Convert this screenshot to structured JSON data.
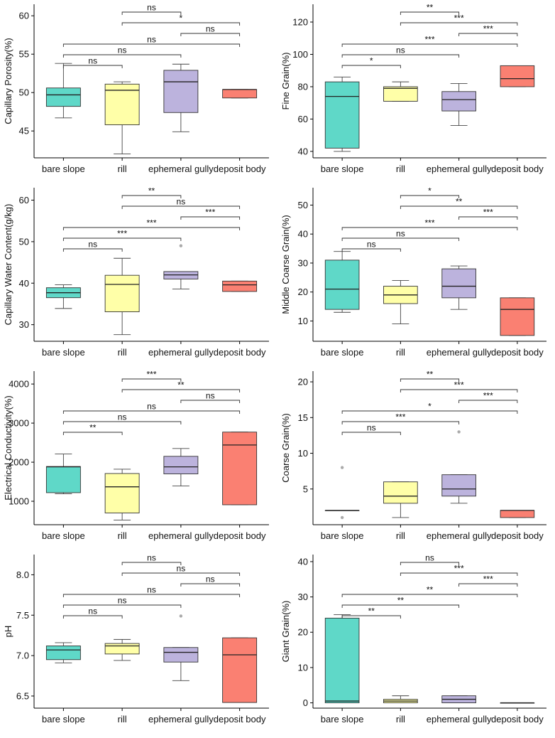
{
  "figure": {
    "columns": 2,
    "rows": 4
  },
  "chart_data": [
    {
      "type": "boxplot",
      "ylabel": "Capillary Porosity(%)",
      "ylim": [
        41.5,
        61.5
      ],
      "yticks": [
        45,
        50,
        55,
        60
      ],
      "categories": [
        "bare slope",
        "rill",
        "ephemeral gully",
        "deposit body"
      ],
      "colors": [
        "#5fd8c8",
        "#ffffa8",
        "#bcb3dd",
        "#fa8072"
      ],
      "boxes": [
        {
          "q1": 48.2,
          "median": 49.7,
          "q3": 50.6,
          "whisker_low": 46.7,
          "whisker_high": 53.8,
          "outliers": []
        },
        {
          "q1": 45.8,
          "median": 50.3,
          "q3": 51.1,
          "whisker_low": 42.0,
          "whisker_high": 51.4,
          "outliers": []
        },
        {
          "q1": 47.4,
          "median": 51.4,
          "q3": 52.9,
          "whisker_low": 44.9,
          "whisker_high": 53.7,
          "outliers": []
        },
        {
          "q1": 49.3,
          "median": 50.4,
          "q3": 50.4,
          "whisker_low": 49.3,
          "whisker_high": 50.4,
          "outliers": []
        }
      ],
      "comparisons": [
        {
          "from": 1,
          "to": 2,
          "label": "ns"
        },
        {
          "from": 1,
          "to": 3,
          "label": "*"
        },
        {
          "from": 2,
          "to": 3,
          "label": "ns"
        },
        {
          "from": 0,
          "to": 3,
          "label": "ns"
        },
        {
          "from": 0,
          "to": 2,
          "label": "ns"
        },
        {
          "from": 0,
          "to": 1,
          "label": "ns"
        }
      ]
    },
    {
      "type": "boxplot",
      "ylabel": "Fine Grain(%)",
      "ylim": [
        36,
        131
      ],
      "yticks": [
        40,
        60,
        80,
        100,
        120
      ],
      "categories": [
        "bare slope",
        "rill",
        "ephemeral gully",
        "deposit body"
      ],
      "colors": [
        "#5fd8c8",
        "#ffffa8",
        "#bcb3dd",
        "#fa8072"
      ],
      "boxes": [
        {
          "q1": 42,
          "median": 74,
          "q3": 83,
          "whisker_low": 40,
          "whisker_high": 86,
          "outliers": []
        },
        {
          "q1": 71,
          "median": 79,
          "q3": 80,
          "whisker_low": 71,
          "whisker_high": 83,
          "outliers": []
        },
        {
          "q1": 65,
          "median": 72,
          "q3": 77,
          "whisker_low": 56,
          "whisker_high": 82,
          "outliers": []
        },
        {
          "q1": 80,
          "median": 85,
          "q3": 93,
          "whisker_low": 80,
          "whisker_high": 93,
          "outliers": []
        }
      ],
      "comparisons": [
        {
          "from": 1,
          "to": 2,
          "label": "**"
        },
        {
          "from": 1,
          "to": 3,
          "label": "***"
        },
        {
          "from": 2,
          "to": 3,
          "label": "***"
        },
        {
          "from": 0,
          "to": 3,
          "label": "***"
        },
        {
          "from": 0,
          "to": 2,
          "label": "ns"
        },
        {
          "from": 0,
          "to": 1,
          "label": "*"
        }
      ]
    },
    {
      "type": "boxplot",
      "ylabel": "Capillary Water Content(g/kg)",
      "ylim": [
        26,
        63
      ],
      "yticks": [
        30,
        40,
        50,
        60
      ],
      "categories": [
        "bare slope",
        "rill",
        "ephemeral gully",
        "deposit body"
      ],
      "colors": [
        "#5fd8c8",
        "#ffffa8",
        "#bcb3dd",
        "#fa8072"
      ],
      "boxes": [
        {
          "q1": 36.5,
          "median": 37.7,
          "q3": 38.9,
          "whisker_low": 33.9,
          "whisker_high": 39.6,
          "outliers": []
        },
        {
          "q1": 33.1,
          "median": 39.7,
          "q3": 41.9,
          "whisker_low": 27.6,
          "whisker_high": 46.0,
          "outliers": []
        },
        {
          "q1": 41.0,
          "median": 42.0,
          "q3": 42.8,
          "whisker_low": 38.6,
          "whisker_high": 42.8,
          "outliers": [
            49.0
          ]
        },
        {
          "q1": 38.0,
          "median": 39.6,
          "q3": 40.5,
          "whisker_low": 38.0,
          "whisker_high": 40.5,
          "outliers": []
        }
      ],
      "comparisons": [
        {
          "from": 1,
          "to": 2,
          "label": "**"
        },
        {
          "from": 1,
          "to": 3,
          "label": "ns"
        },
        {
          "from": 2,
          "to": 3,
          "label": "***"
        },
        {
          "from": 0,
          "to": 3,
          "label": "***"
        },
        {
          "from": 0,
          "to": 2,
          "label": "***"
        },
        {
          "from": 0,
          "to": 1,
          "label": "ns"
        }
      ]
    },
    {
      "type": "boxplot",
      "ylabel": "Middle Coarse Grain(%)",
      "ylim": [
        3,
        56
      ],
      "yticks": [
        10,
        20,
        30,
        40,
        50
      ],
      "categories": [
        "bare slope",
        "rill",
        "ephemeral gully",
        "deposit body"
      ],
      "colors": [
        "#5fd8c8",
        "#ffffa8",
        "#bcb3dd",
        "#fa8072"
      ],
      "boxes": [
        {
          "q1": 14,
          "median": 21,
          "q3": 31,
          "whisker_low": 13,
          "whisker_high": 34,
          "outliers": []
        },
        {
          "q1": 16,
          "median": 19,
          "q3": 22,
          "whisker_low": 9,
          "whisker_high": 24,
          "outliers": []
        },
        {
          "q1": 18,
          "median": 22,
          "q3": 28,
          "whisker_low": 14,
          "whisker_high": 29,
          "outliers": []
        },
        {
          "q1": 5,
          "median": 14,
          "q3": 18,
          "whisker_low": 5,
          "whisker_high": 18,
          "outliers": []
        }
      ],
      "comparisons": [
        {
          "from": 1,
          "to": 2,
          "label": "*"
        },
        {
          "from": 1,
          "to": 3,
          "label": "**"
        },
        {
          "from": 2,
          "to": 3,
          "label": "***"
        },
        {
          "from": 0,
          "to": 3,
          "label": "***"
        },
        {
          "from": 0,
          "to": 2,
          "label": "ns"
        },
        {
          "from": 0,
          "to": 1,
          "label": "ns"
        }
      ]
    },
    {
      "type": "boxplot",
      "ylabel": "Electrical Conductivity(%)",
      "ylim": [
        400,
        4330
      ],
      "yticks": [
        1000,
        2000,
        3000,
        4000
      ],
      "categories": [
        "bare slope",
        "rill",
        "ephemeral gully",
        "deposit body"
      ],
      "colors": [
        "#5fd8c8",
        "#ffffa8",
        "#bcb3dd",
        "#fa8072"
      ],
      "boxes": [
        {
          "q1": 1220,
          "median": 1880,
          "q3": 1890,
          "whisker_low": 1190,
          "whisker_high": 2210,
          "outliers": []
        },
        {
          "q1": 700,
          "median": 1370,
          "q3": 1710,
          "whisker_low": 520,
          "whisker_high": 1820,
          "outliers": []
        },
        {
          "q1": 1700,
          "median": 1880,
          "q3": 2150,
          "whisker_low": 1390,
          "whisker_high": 2350,
          "outliers": []
        },
        {
          "q1": 910,
          "median": 2440,
          "q3": 2770,
          "whisker_low": 910,
          "whisker_high": 2770,
          "outliers": []
        }
      ],
      "comparisons": [
        {
          "from": 1,
          "to": 2,
          "label": "***"
        },
        {
          "from": 1,
          "to": 3,
          "label": "**"
        },
        {
          "from": 2,
          "to": 3,
          "label": "ns"
        },
        {
          "from": 0,
          "to": 3,
          "label": "ns"
        },
        {
          "from": 0,
          "to": 2,
          "label": "ns"
        },
        {
          "from": 0,
          "to": 1,
          "label": "**"
        }
      ]
    },
    {
      "type": "boxplot",
      "ylabel": "Coarse Grain(%)",
      "ylim": [
        0,
        21.5
      ],
      "yticks": [
        5,
        10,
        15,
        20
      ],
      "categories": [
        "bare slope",
        "rill",
        "ephemeral gully",
        "deposit body"
      ],
      "colors": [
        "#5fd8c8",
        "#ffffa8",
        "#bcb3dd",
        "#fa8072"
      ],
      "boxes": [
        {
          "q1": 2,
          "median": 2,
          "q3": 2,
          "whisker_low": 2,
          "whisker_high": 2,
          "outliers": [
            8,
            1
          ]
        },
        {
          "q1": 3,
          "median": 4,
          "q3": 6,
          "whisker_low": 1,
          "whisker_high": 6,
          "outliers": []
        },
        {
          "q1": 4,
          "median": 5,
          "q3": 7,
          "whisker_low": 3,
          "whisker_high": 7,
          "outliers": [
            13
          ]
        },
        {
          "q1": 1,
          "median": 2,
          "q3": 2,
          "whisker_low": 1,
          "whisker_high": 2,
          "outliers": []
        }
      ],
      "comparisons": [
        {
          "from": 1,
          "to": 2,
          "label": "**"
        },
        {
          "from": 1,
          "to": 3,
          "label": "***"
        },
        {
          "from": 2,
          "to": 3,
          "label": "***"
        },
        {
          "from": 0,
          "to": 3,
          "label": "*"
        },
        {
          "from": 0,
          "to": 2,
          "label": "***"
        },
        {
          "from": 0,
          "to": 1,
          "label": "ns"
        }
      ]
    },
    {
      "type": "boxplot",
      "ylabel": "pH",
      "ylim": [
        6.35,
        8.25
      ],
      "yticks": [
        6.5,
        7.0,
        7.5,
        8.0
      ],
      "ytick_labels": [
        "6.5",
        "7.0",
        "7.5",
        "8.0"
      ],
      "categories": [
        "bare slope",
        "rill",
        "ephemeral gully",
        "deposit body"
      ],
      "colors": [
        "#5fd8c8",
        "#ffffa8",
        "#bcb3dd",
        "#fa8072"
      ],
      "boxes": [
        {
          "q1": 6.95,
          "median": 7.07,
          "q3": 7.12,
          "whisker_low": 6.91,
          "whisker_high": 7.16,
          "outliers": []
        },
        {
          "q1": 7.02,
          "median": 7.12,
          "q3": 7.15,
          "whisker_low": 6.94,
          "whisker_high": 7.2,
          "outliers": []
        },
        {
          "q1": 6.92,
          "median": 7.04,
          "q3": 7.1,
          "whisker_low": 6.69,
          "whisker_high": 7.1,
          "outliers": [
            7.49
          ]
        },
        {
          "q1": 6.42,
          "median": 7.01,
          "q3": 7.22,
          "whisker_low": 6.42,
          "whisker_high": 7.22,
          "outliers": []
        }
      ],
      "comparisons": [
        {
          "from": 1,
          "to": 2,
          "label": "ns"
        },
        {
          "from": 1,
          "to": 3,
          "label": "ns"
        },
        {
          "from": 2,
          "to": 3,
          "label": "ns"
        },
        {
          "from": 0,
          "to": 3,
          "label": "ns"
        },
        {
          "from": 0,
          "to": 2,
          "label": "ns"
        },
        {
          "from": 0,
          "to": 1,
          "label": "ns"
        }
      ]
    },
    {
      "type": "boxplot",
      "ylabel": "Giant Grain(%)",
      "ylim": [
        -1.5,
        42
      ],
      "yticks": [
        0,
        10,
        20,
        30,
        40
      ],
      "categories": [
        "bare slope",
        "rill",
        "ephemeral gully",
        "deposit body"
      ],
      "colors": [
        "#5fd8c8",
        "#ffffa8",
        "#bcb3dd",
        "#fa8072"
      ],
      "boxes": [
        {
          "q1": 0,
          "median": 0.5,
          "q3": 24,
          "whisker_low": 0,
          "whisker_high": 25,
          "outliers": []
        },
        {
          "q1": 0,
          "median": 0.5,
          "q3": 1,
          "whisker_low": 0,
          "whisker_high": 2,
          "outliers": []
        },
        {
          "q1": 0,
          "median": 1,
          "q3": 2,
          "whisker_low": 0,
          "whisker_high": 2,
          "outliers": []
        },
        {
          "q1": 0,
          "median": 0,
          "q3": 0,
          "whisker_low": 0,
          "whisker_high": 0,
          "outliers": []
        }
      ],
      "comparisons": [
        {
          "from": 1,
          "to": 2,
          "label": "ns"
        },
        {
          "from": 1,
          "to": 3,
          "label": "***"
        },
        {
          "from": 2,
          "to": 3,
          "label": "***"
        },
        {
          "from": 0,
          "to": 3,
          "label": "**"
        },
        {
          "from": 0,
          "to": 2,
          "label": "**"
        },
        {
          "from": 0,
          "to": 1,
          "label": "**"
        }
      ]
    }
  ]
}
